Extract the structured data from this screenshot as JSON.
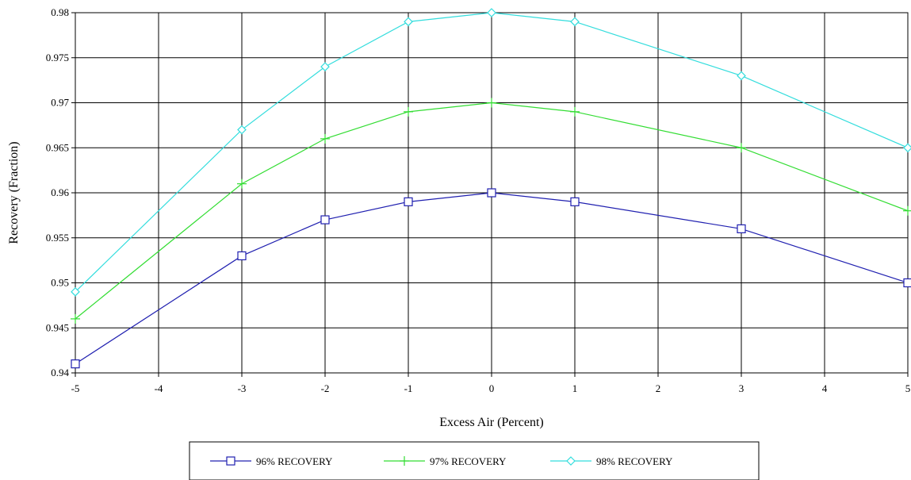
{
  "chart_data": {
    "type": "line",
    "xlabel": "Excess Air (Percent)",
    "ylabel": "Recovery (Fraction)",
    "xlim": [
      -5,
      5
    ],
    "ylim": [
      0.94,
      0.98
    ],
    "x_ticks": [
      -5,
      -4,
      -3,
      -2,
      -1,
      0,
      1,
      2,
      3,
      4,
      5
    ],
    "y_ticks": [
      "0.94",
      "0.945",
      "0.95",
      "0.955",
      "0.96",
      "0.965",
      "0.97",
      "0.975",
      "0.98"
    ],
    "grid": true,
    "legend_placement": "bottom-center",
    "x": [
      -5,
      -3,
      -2,
      -1,
      0,
      1,
      3,
      5
    ],
    "series": [
      {
        "name": "96% RECOVERY",
        "color": "#2020b0",
        "marker": "square",
        "values": [
          0.941,
          0.953,
          0.957,
          0.959,
          0.96,
          0.959,
          0.956,
          0.95
        ]
      },
      {
        "name": "97% RECOVERY",
        "color": "#33dd33",
        "marker": "plus",
        "values": [
          0.946,
          0.961,
          0.966,
          0.969,
          0.97,
          0.969,
          0.965,
          0.958
        ]
      },
      {
        "name": "98% RECOVERY",
        "color": "#33dddd",
        "marker": "diamond",
        "values": [
          0.949,
          0.967,
          0.974,
          0.979,
          0.98,
          0.979,
          0.973,
          0.965
        ]
      }
    ]
  }
}
